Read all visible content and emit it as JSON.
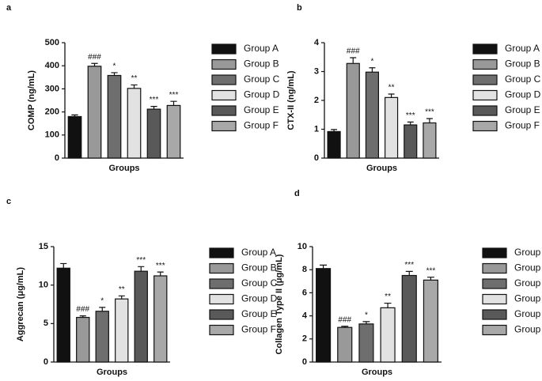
{
  "chart_data": [
    {
      "type": "bar",
      "panel": "a",
      "ylabel": "COMP (ng/mL)",
      "xlabel": "Groups",
      "categories": [
        "Group A",
        "Group B",
        "Group C",
        "Group D",
        "Group E",
        "Group F"
      ],
      "colors": [
        "#111111",
        "#999999",
        "#6e6e6e",
        "#e2e2e2",
        "#595959",
        "#a8a8a8"
      ],
      "values": [
        180,
        398,
        358,
        302,
        212,
        228
      ],
      "errors": [
        7,
        12,
        12,
        15,
        12,
        18
      ],
      "annotations": [
        null,
        "###",
        "*",
        "**",
        "***",
        "***"
      ],
      "ylim": [
        0,
        500
      ],
      "yticks": [
        0,
        100,
        200,
        300,
        400,
        500
      ]
    },
    {
      "type": "bar",
      "panel": "b",
      "ylabel": "CTX-II (ng/mL)",
      "xlabel": "Groups",
      "categories": [
        "Group A",
        "Group B",
        "Group C",
        "Group D",
        "Group E",
        "Group F"
      ],
      "colors": [
        "#111111",
        "#999999",
        "#6e6e6e",
        "#e2e2e2",
        "#595959",
        "#a8a8a8"
      ],
      "values": [
        0.92,
        3.28,
        2.98,
        2.1,
        1.15,
        1.22
      ],
      "errors": [
        0.07,
        0.2,
        0.15,
        0.12,
        0.1,
        0.15
      ],
      "annotations": [
        null,
        "###",
        "*",
        "**",
        "***",
        "***"
      ],
      "ylim": [
        0,
        4
      ],
      "yticks": [
        0,
        1,
        2,
        3,
        4
      ]
    },
    {
      "type": "bar",
      "panel": "c",
      "ylabel": "Aggrecan (μg/mL)",
      "xlabel": "Groups",
      "categories": [
        "Group A",
        "Group B",
        "Group C",
        "Group D",
        "Group E",
        "Group F"
      ],
      "colors": [
        "#111111",
        "#999999",
        "#6e6e6e",
        "#e2e2e2",
        "#595959",
        "#a8a8a8"
      ],
      "values": [
        12.2,
        5.8,
        6.6,
        8.2,
        11.8,
        11.2
      ],
      "errors": [
        0.6,
        0.2,
        0.5,
        0.4,
        0.6,
        0.5
      ],
      "annotations": [
        null,
        "###",
        "*",
        "**",
        "***",
        "***"
      ],
      "ylim": [
        0,
        15
      ],
      "yticks": [
        0,
        5,
        10,
        15
      ]
    },
    {
      "type": "bar",
      "panel": "d",
      "ylabel": "Collagen Type II (μg/mL)",
      "xlabel": "Groups",
      "categories": [
        "Group A",
        "Group B",
        "Group C",
        "Group D",
        "Group E",
        "Group F"
      ],
      "colors": [
        "#111111",
        "#999999",
        "#6e6e6e",
        "#e2e2e2",
        "#595959",
        "#a8a8a8"
      ],
      "values": [
        8.1,
        3.0,
        3.3,
        4.7,
        7.5,
        7.1
      ],
      "errors": [
        0.3,
        0.1,
        0.2,
        0.4,
        0.35,
        0.25
      ],
      "annotations": [
        null,
        "###",
        "*",
        "**",
        "***",
        "***"
      ],
      "ylim": [
        0,
        10
      ],
      "yticks": [
        0,
        2,
        4,
        6,
        8,
        10
      ]
    }
  ]
}
